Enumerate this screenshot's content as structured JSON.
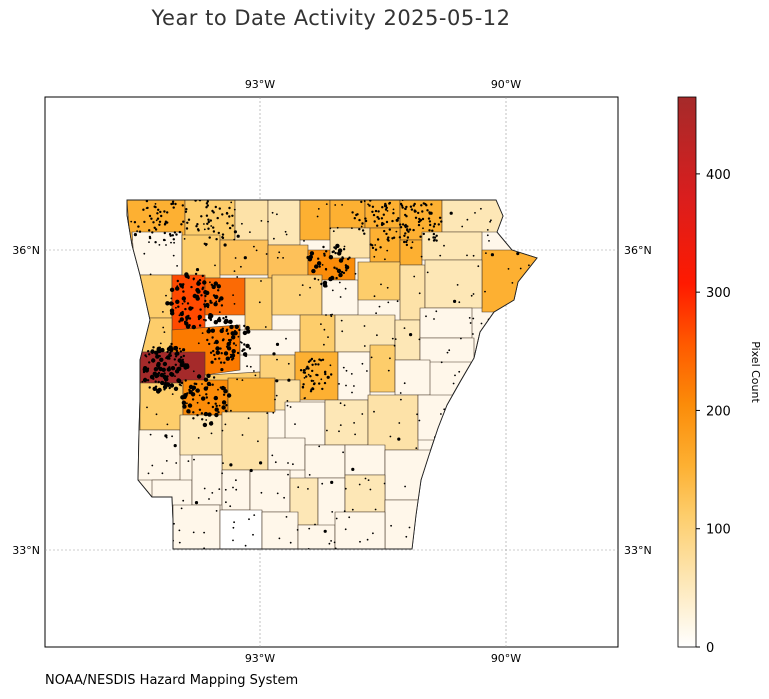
{
  "title": "Year to Date Activity 2025-05-12",
  "credit": "NOAA/NESDIS Hazard Mapping System",
  "map": {
    "lon_range": [
      -95.0,
      -88.5
    ],
    "lat_range": [
      31.9,
      37.0
    ],
    "lon_ticks": [
      {
        "value": -93,
        "label": "93°W"
      },
      {
        "value": -90,
        "label": "90°W"
      }
    ],
    "lat_ticks": [
      {
        "value": 36,
        "label": "36°N"
      },
      {
        "value": 33,
        "label": "33°N"
      }
    ],
    "gridlines": true
  },
  "colorbar": {
    "label": "Pixel Count",
    "min": 0,
    "max": 465,
    "ticks": [
      0,
      100,
      200,
      300,
      400
    ],
    "colormap": [
      "#ffffff",
      "#fde7b6",
      "#fdcd6b",
      "#fdb032",
      "#fb8c09",
      "#ff5a00",
      "#ff1a00",
      "#d91e1e",
      "#a52a2a"
    ]
  },
  "chart_data": {
    "type": "choropleth",
    "region": "Arkansas counties",
    "value_label": "Pixel Count",
    "highlighted_counties": [
      {
        "area": "west-central (Sebastian area)",
        "value": 460
      },
      {
        "area": "northwest (Crawford area)",
        "value": 290
      },
      {
        "area": "northwest (Franklin area)",
        "value": 250
      },
      {
        "area": "west-central (Logan/Yell area)",
        "value": 230
      },
      {
        "area": "north-central (Stone area)",
        "value": 230
      },
      {
        "area": "southwest (Montgomery area)",
        "value": 200
      },
      {
        "area": "northeast (Randolph area)",
        "value": 150
      }
    ]
  }
}
